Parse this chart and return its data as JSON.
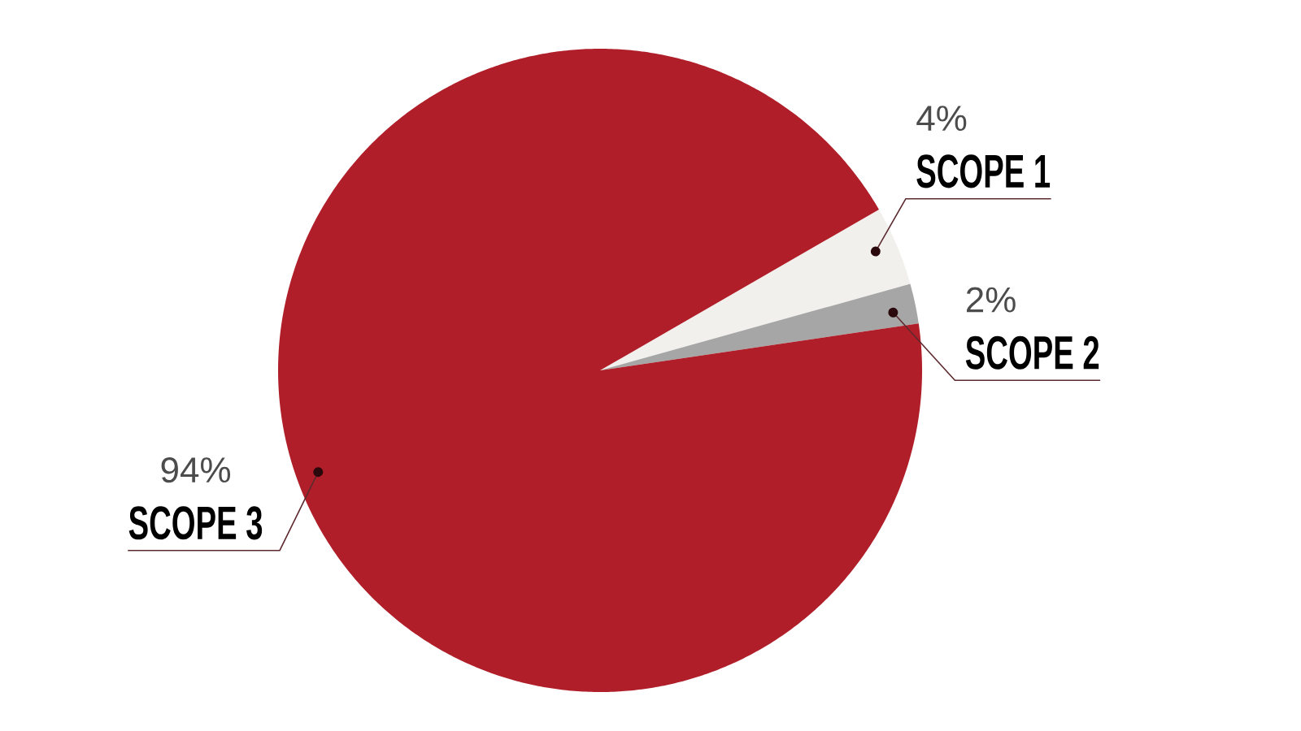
{
  "chart_data": {
    "type": "pie",
    "categories": [
      "SCOPE 1",
      "SCOPE 2",
      "SCOPE 3"
    ],
    "values": [
      4,
      2,
      94
    ],
    "colors": [
      "#f2f0ed",
      "#a6a6a6",
      "#b01f29"
    ],
    "value_labels": [
      "4%",
      "2%",
      "94%"
    ]
  }
}
